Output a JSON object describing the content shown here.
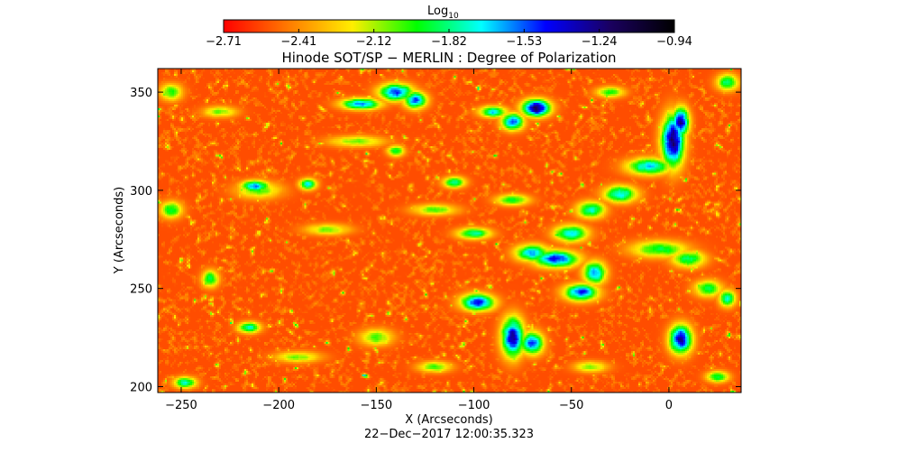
{
  "chart_data": {
    "type": "heatmap",
    "title": "Hinode SOT/SP − MERLIN : Degree of Polarization",
    "xlabel": "X (Arcseconds)",
    "ylabel": "Y (Arcseconds)",
    "xlim": [
      -262,
      37
    ],
    "ylim": [
      197,
      362
    ],
    "x_ticks": [
      -250,
      -200,
      -150,
      -100,
      -50,
      0
    ],
    "y_ticks": [
      200,
      250,
      300,
      350
    ],
    "x_tick_labels": [
      "−250",
      "−200",
      "−150",
      "−100",
      "−50",
      "0"
    ],
    "y_tick_labels": [
      "200",
      "250",
      "300",
      "350"
    ],
    "colorbar": {
      "label_base": "Log",
      "label_sub": "10",
      "range": [
        -2.71,
        -0.94
      ],
      "scale": "log10",
      "tick_labels": [
        "−2.71",
        "−2.41",
        "−2.12",
        "−1.82",
        "−1.53",
        "−1.24",
        "−0.94"
      ],
      "colormap": [
        "#ff0000",
        "#ff7a00",
        "#ffee00",
        "#00ff00",
        "#00ffff",
        "#0000ff",
        "#1a0060",
        "#000000"
      ]
    },
    "background_level": -2.55,
    "features": [
      {
        "x": -140,
        "y": 350,
        "sx": 6,
        "sy": 3,
        "v": -1.45
      },
      {
        "x": -158,
        "y": 344,
        "sx": 7,
        "sy": 2,
        "v": -1.55
      },
      {
        "x": -130,
        "y": 346,
        "sx": 4,
        "sy": 3,
        "v": -1.5
      },
      {
        "x": -90,
        "y": 340,
        "sx": 5,
        "sy": 2,
        "v": -1.7
      },
      {
        "x": -68,
        "y": 342,
        "sx": 5,
        "sy": 3,
        "v": -1.2
      },
      {
        "x": -80,
        "y": 335,
        "sx": 4,
        "sy": 3,
        "v": -1.5
      },
      {
        "x": 2,
        "y": 325,
        "sx": 4,
        "sy": 9,
        "v": -1.2
      },
      {
        "x": 6,
        "y": 335,
        "sx": 3,
        "sy": 5,
        "v": -1.3
      },
      {
        "x": -10,
        "y": 312,
        "sx": 8,
        "sy": 3,
        "v": -1.65
      },
      {
        "x": -25,
        "y": 298,
        "sx": 6,
        "sy": 3,
        "v": -1.7
      },
      {
        "x": -40,
        "y": 290,
        "sx": 5,
        "sy": 3,
        "v": -1.75
      },
      {
        "x": -50,
        "y": 278,
        "sx": 6,
        "sy": 3,
        "v": -1.7
      },
      {
        "x": -58,
        "y": 265,
        "sx": 8,
        "sy": 3,
        "v": -1.45
      },
      {
        "x": -70,
        "y": 268,
        "sx": 6,
        "sy": 3,
        "v": -1.6
      },
      {
        "x": -45,
        "y": 248,
        "sx": 6,
        "sy": 3,
        "v": -1.5
      },
      {
        "x": -38,
        "y": 258,
        "sx": 4,
        "sy": 4,
        "v": -1.6
      },
      {
        "x": -80,
        "y": 225,
        "sx": 4,
        "sy": 7,
        "v": -1.35
      },
      {
        "x": -70,
        "y": 222,
        "sx": 4,
        "sy": 4,
        "v": -1.5
      },
      {
        "x": -98,
        "y": 243,
        "sx": 6,
        "sy": 3,
        "v": -1.45
      },
      {
        "x": 6,
        "y": 224,
        "sx": 4,
        "sy": 5,
        "v": -1.3
      },
      {
        "x": -100,
        "y": 278,
        "sx": 6,
        "sy": 2,
        "v": -1.75
      },
      {
        "x": -212,
        "y": 302,
        "sx": 5,
        "sy": 2,
        "v": -1.55
      },
      {
        "x": -185,
        "y": 303,
        "sx": 3,
        "sy": 2,
        "v": -1.7
      },
      {
        "x": -110,
        "y": 304,
        "sx": 4,
        "sy": 2,
        "v": -1.8
      },
      {
        "x": -140,
        "y": 320,
        "sx": 3,
        "sy": 2,
        "v": -1.85
      },
      {
        "x": -215,
        "y": 230,
        "sx": 4,
        "sy": 2,
        "v": -1.75
      },
      {
        "x": -235,
        "y": 255,
        "sx": 3,
        "sy": 3,
        "v": -1.85
      },
      {
        "x": -248,
        "y": 202,
        "sx": 4,
        "sy": 2,
        "v": -1.75
      },
      {
        "x": -210,
        "y": 300,
        "sx": 8,
        "sy": 3,
        "v": -2.0
      },
      {
        "x": 20,
        "y": 250,
        "sx": 5,
        "sy": 3,
        "v": -1.9
      },
      {
        "x": 30,
        "y": 245,
        "sx": 3,
        "sy": 3,
        "v": -1.75
      },
      {
        "x": -5,
        "y": 270,
        "sx": 10,
        "sy": 3,
        "v": -1.9
      },
      {
        "x": 10,
        "y": 265,
        "sx": 6,
        "sy": 3,
        "v": -1.85
      },
      {
        "x": -150,
        "y": 225,
        "sx": 6,
        "sy": 3,
        "v": -2.0
      },
      {
        "x": -120,
        "y": 290,
        "sx": 8,
        "sy": 2,
        "v": -2.0
      },
      {
        "x": -175,
        "y": 280,
        "sx": 8,
        "sy": 2,
        "v": -2.05
      },
      {
        "x": -160,
        "y": 325,
        "sx": 10,
        "sy": 2,
        "v": -2.05
      },
      {
        "x": -80,
        "y": 295,
        "sx": 6,
        "sy": 2,
        "v": -1.9
      },
      {
        "x": -255,
        "y": 290,
        "sx": 4,
        "sy": 3,
        "v": -1.9
      },
      {
        "x": -255,
        "y": 350,
        "sx": 4,
        "sy": 3,
        "v": -1.95
      },
      {
        "x": 30,
        "y": 355,
        "sx": 4,
        "sy": 3,
        "v": -1.85
      },
      {
        "x": -30,
        "y": 350,
        "sx": 5,
        "sy": 2,
        "v": -1.95
      },
      {
        "x": -230,
        "y": 340,
        "sx": 6,
        "sy": 2,
        "v": -2.05
      },
      {
        "x": -190,
        "y": 215,
        "sx": 8,
        "sy": 2,
        "v": -2.05
      },
      {
        "x": -120,
        "y": 210,
        "sx": 6,
        "sy": 2,
        "v": -2.0
      },
      {
        "x": -40,
        "y": 210,
        "sx": 6,
        "sy": 2,
        "v": -2.05
      },
      {
        "x": 25,
        "y": 205,
        "sx": 4,
        "sy": 2,
        "v": -1.85
      }
    ]
  },
  "timestamp": "22−Dec−2017 12:00:35.323"
}
